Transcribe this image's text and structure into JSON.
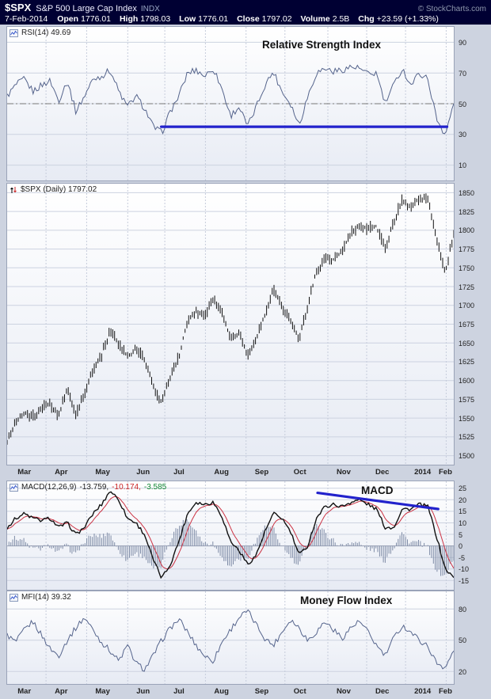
{
  "header": {
    "symbol": "$SPX",
    "name": "S&P 500 Large Cap Index",
    "exchange": "INDX",
    "copyright": "© StockCharts.com",
    "date": "7-Feb-2014",
    "fields": [
      {
        "label": "Open",
        "value": "1776.01"
      },
      {
        "label": "High",
        "value": "1798.03"
      },
      {
        "label": "Low",
        "value": "1776.01"
      },
      {
        "label": "Close",
        "value": "1797.02"
      },
      {
        "label": "Volume",
        "value": "2.5B"
      },
      {
        "label": "Chg",
        "value": "+23.59 (+1.33%)"
      }
    ]
  },
  "axis": {
    "months": [
      {
        "label": "Mar",
        "f": 0.004
      },
      {
        "label": "Apr",
        "f": 0.087
      },
      {
        "label": "May",
        "f": 0.178
      },
      {
        "label": "Jun",
        "f": 0.27
      },
      {
        "label": "Jul",
        "f": 0.353
      },
      {
        "label": "Aug",
        "f": 0.444
      },
      {
        "label": "Sep",
        "f": 0.535
      },
      {
        "label": "Oct",
        "f": 0.622
      },
      {
        "label": "Nov",
        "f": 0.718
      },
      {
        "label": "Dec",
        "f": 0.805
      },
      {
        "label": "2014",
        "f": 0.892
      },
      {
        "label": "Feb",
        "f": 0.983
      }
    ]
  },
  "chart_data": [
    {
      "id": "rsi",
      "type": "line",
      "title": "RSI(14) 49.69",
      "annotation": "Relative Strength Index",
      "color": "#55648c",
      "ylim": [
        0,
        100
      ],
      "yticks": [
        90,
        70,
        50,
        30,
        10
      ],
      "dash_level": 50,
      "wiggle": 2.2,
      "support_line": {
        "x1f": 0.345,
        "y1": 35,
        "x2f": 0.985,
        "y2": 35,
        "color": "#2222cc"
      },
      "values": [
        55,
        62,
        66,
        58,
        62,
        65,
        52,
        65,
        45,
        55,
        66,
        68,
        72,
        58,
        48,
        55,
        47,
        35,
        31,
        45,
        55,
        70,
        72,
        68,
        73,
        60,
        42,
        48,
        35,
        48,
        62,
        71,
        58,
        50,
        36,
        55,
        70,
        73,
        71,
        72,
        74,
        73,
        69,
        70,
        50,
        62,
        73,
        62,
        70,
        66,
        40,
        30,
        49.69
      ]
    },
    {
      "id": "price",
      "type": "ohlc",
      "title": "$SPX (Daily) 1797.02",
      "annotation": "",
      "color": "#111111",
      "ylim": [
        1488,
        1862
      ],
      "yticks": [
        1850,
        1825,
        1800,
        1775,
        1750,
        1725,
        1700,
        1675,
        1650,
        1625,
        1600,
        1575,
        1550,
        1525,
        1500
      ],
      "bar_spread": 7,
      "wiggle": 1.5,
      "closes": [
        1518,
        1545,
        1556,
        1552,
        1563,
        1569,
        1553,
        1589,
        1555,
        1582,
        1614,
        1633,
        1667,
        1650,
        1631,
        1643,
        1627,
        1592,
        1570,
        1606,
        1632,
        1680,
        1692,
        1686,
        1710,
        1691,
        1656,
        1664,
        1633,
        1655,
        1688,
        1722,
        1698,
        1680,
        1656,
        1698,
        1745,
        1760,
        1762,
        1771,
        1798,
        1805,
        1802,
        1805,
        1775,
        1810,
        1842,
        1831,
        1842,
        1839,
        1790,
        1742,
        1797
      ]
    },
    {
      "id": "macd",
      "type": "macd",
      "title": "MACD(12,26,9)",
      "v1": "-13.759,",
      "v2": "-10.174,",
      "v3": "-3.585",
      "annotation": "MACD",
      "ylim": [
        -19,
        28
      ],
      "yticks": [
        25,
        20,
        15,
        10,
        5,
        0,
        -5,
        -10,
        -15
      ],
      "wiggle": 0.8,
      "hist_scale": 1.6,
      "line_color": "#111111",
      "signal_color": "#cc3344",
      "hist_color": "#7e8ba6",
      "trend_line": {
        "x1f": 0.695,
        "y1": 23,
        "x2f": 0.965,
        "y2": 16,
        "color": "#2222cc"
      },
      "macd": [
        8,
        12,
        14,
        12,
        11,
        12,
        8,
        10,
        5,
        8,
        14,
        18,
        24,
        20,
        12,
        10,
        5,
        -6,
        -14,
        -8,
        2,
        14,
        19,
        18,
        19,
        13,
        2,
        -2,
        -8,
        -4,
        6,
        14,
        12,
        6,
        -4,
        0,
        12,
        17,
        18,
        17,
        19,
        20,
        18,
        16,
        8,
        8,
        16,
        16,
        18,
        17,
        4,
        -10,
        -13.76
      ]
    },
    {
      "id": "mfi",
      "type": "line",
      "title": "MFI(14) 39.32",
      "annotation": "Money Flow Index",
      "color": "#55648c",
      "ylim": [
        8,
        97
      ],
      "yticks": [
        80,
        50,
        20
      ],
      "wiggle": 2.8,
      "values": [
        55,
        48,
        60,
        68,
        55,
        42,
        35,
        50,
        62,
        72,
        60,
        48,
        40,
        30,
        45,
        28,
        22,
        35,
        50,
        62,
        70,
        58,
        45,
        35,
        30,
        48,
        60,
        72,
        78,
        65,
        52,
        45,
        58,
        70,
        62,
        50,
        58,
        68,
        60,
        52,
        62,
        68,
        58,
        45,
        35,
        52,
        64,
        58,
        50,
        44,
        28,
        24,
        39.32
      ]
    }
  ]
}
